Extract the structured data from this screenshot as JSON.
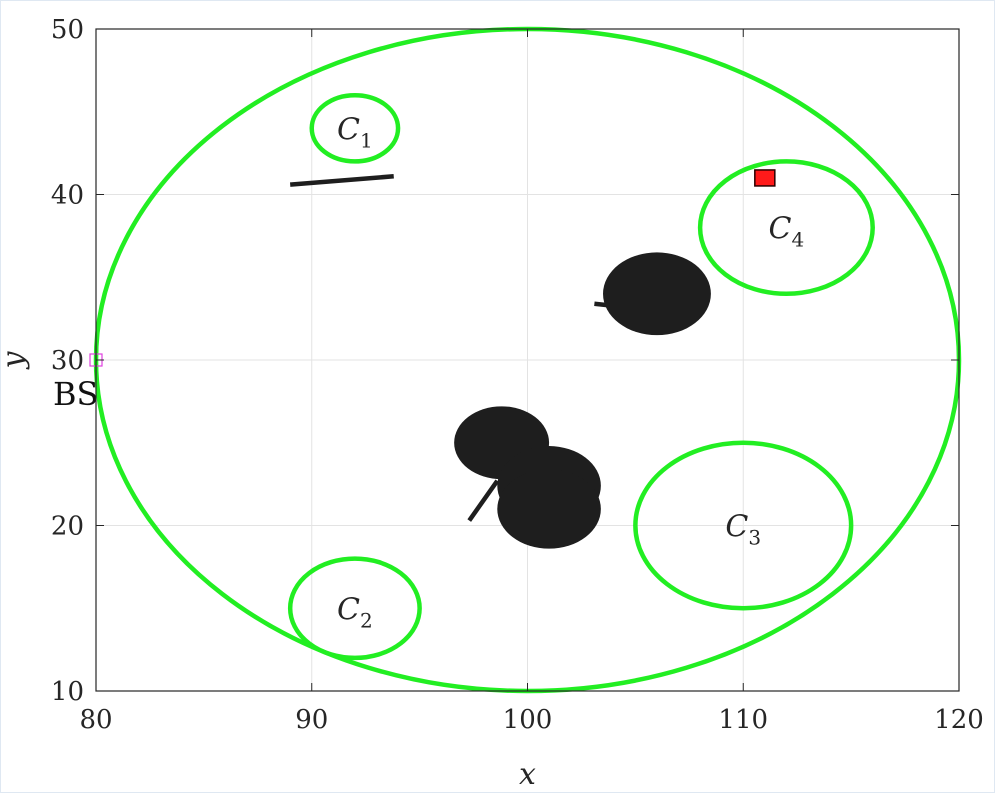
{
  "chart_data": {
    "type": "scatter",
    "xlabel": "x",
    "ylabel": "y",
    "xlim": [
      80,
      120
    ],
    "ylim": [
      10,
      50
    ],
    "xticks": [
      "80",
      "90",
      "100",
      "110",
      "120"
    ],
    "yticks": [
      "10",
      "20",
      "30",
      "40",
      "50"
    ],
    "grid": true,
    "colors": {
      "circle": "#22ee22",
      "obstacle": "#1e1e1e",
      "target": "#ff1a1a",
      "bs": "#e040e0",
      "grid": "#e3e3e3",
      "axis": "#262626"
    },
    "boundary": {
      "cx": 100,
      "cy": 30,
      "rx": 20,
      "ry": 20
    },
    "clusters": [
      {
        "label": "C",
        "sub": "1",
        "cx": 92,
        "cy": 44,
        "rx": 2,
        "ry": 2
      },
      {
        "label": "C",
        "sub": "2",
        "cx": 92,
        "cy": 15,
        "rx": 3,
        "ry": 3
      },
      {
        "label": "C",
        "sub": "3",
        "cx": 110,
        "cy": 20,
        "rx": 5,
        "ry": 5
      },
      {
        "label": "C",
        "sub": "4",
        "cx": 112,
        "cy": 38,
        "rx": 4,
        "ry": 4
      }
    ],
    "obstacles": [
      {
        "cx": 106,
        "cy": 34,
        "rx": 2.5,
        "ry": 2.5
      },
      {
        "cx": 98.8,
        "cy": 25,
        "rx": 2.2,
        "ry": 2.2
      },
      {
        "cx": 101,
        "cy": 22.4,
        "rx": 2.4,
        "ry": 2.4
      },
      {
        "cx": 101,
        "cy": 21,
        "rx": 2.4,
        "ry": 2.4
      }
    ],
    "segments": [
      {
        "x1": 89,
        "y1": 40.6,
        "x2": 93.8,
        "y2": 41.1
      },
      {
        "x1": 103.1,
        "y1": 33.4,
        "x2": 103.8,
        "y2": 33.3
      },
      {
        "x1": 97.3,
        "y1": 20.3,
        "x2": 98.6,
        "y2": 22.7
      }
    ],
    "target": {
      "x": 111,
      "y": 41
    },
    "bs": {
      "x": 80,
      "y": 30,
      "label": "BS"
    }
  }
}
